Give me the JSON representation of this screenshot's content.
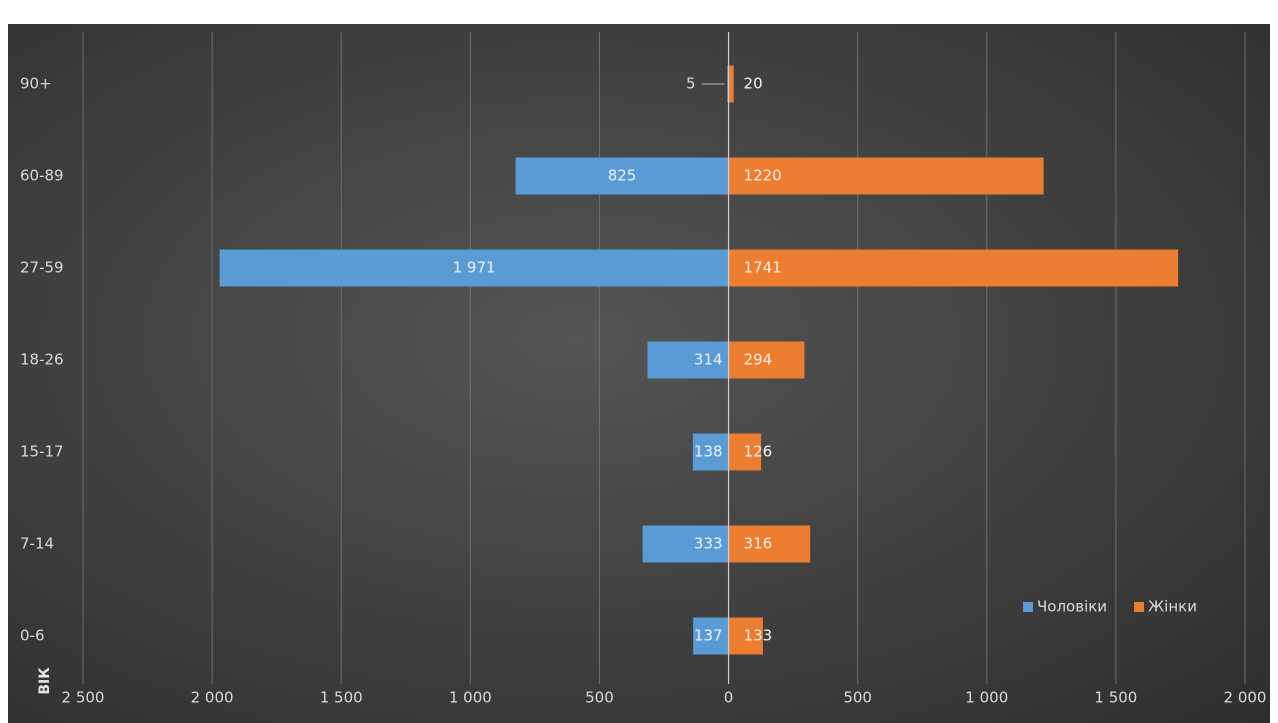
{
  "chart_data": {
    "type": "bar",
    "orientation": "horizontal",
    "layout": "population-pyramid",
    "categories": [
      "90+",
      "60-89",
      "27-59",
      "18-26",
      "15-17",
      "7-14",
      "0-6"
    ],
    "series": [
      {
        "name": "Чоловіки",
        "color": "#5b9bd5",
        "side": "left",
        "values": [
          5,
          825,
          1971,
          314,
          138,
          333,
          137
        ],
        "labels": [
          "5",
          "825",
          "1 971",
          "314",
          "138",
          "333",
          "137"
        ]
      },
      {
        "name": "Жінки",
        "color": "#ed7d31",
        "side": "right",
        "values": [
          20,
          1220,
          1741,
          294,
          126,
          316,
          133
        ],
        "labels": [
          "20",
          "1220",
          "1741",
          "294",
          "126",
          "316",
          "133"
        ]
      }
    ],
    "xlim": [
      -2500,
      2000
    ],
    "x_ticks": [
      -2500,
      -2000,
      -1500,
      -1000,
      -500,
      0,
      500,
      1000,
      1500,
      2000
    ],
    "x_tick_labels": [
      "2 500",
      "2 000",
      "1 500",
      "1 000",
      "500",
      "0",
      "500",
      "1 000",
      "1 500",
      "2 000"
    ],
    "ylabel": "ВІК",
    "grid": "vertical",
    "legend": "bottom-right",
    "legend_labels": [
      "Чоловіки",
      "Жінки"
    ]
  }
}
